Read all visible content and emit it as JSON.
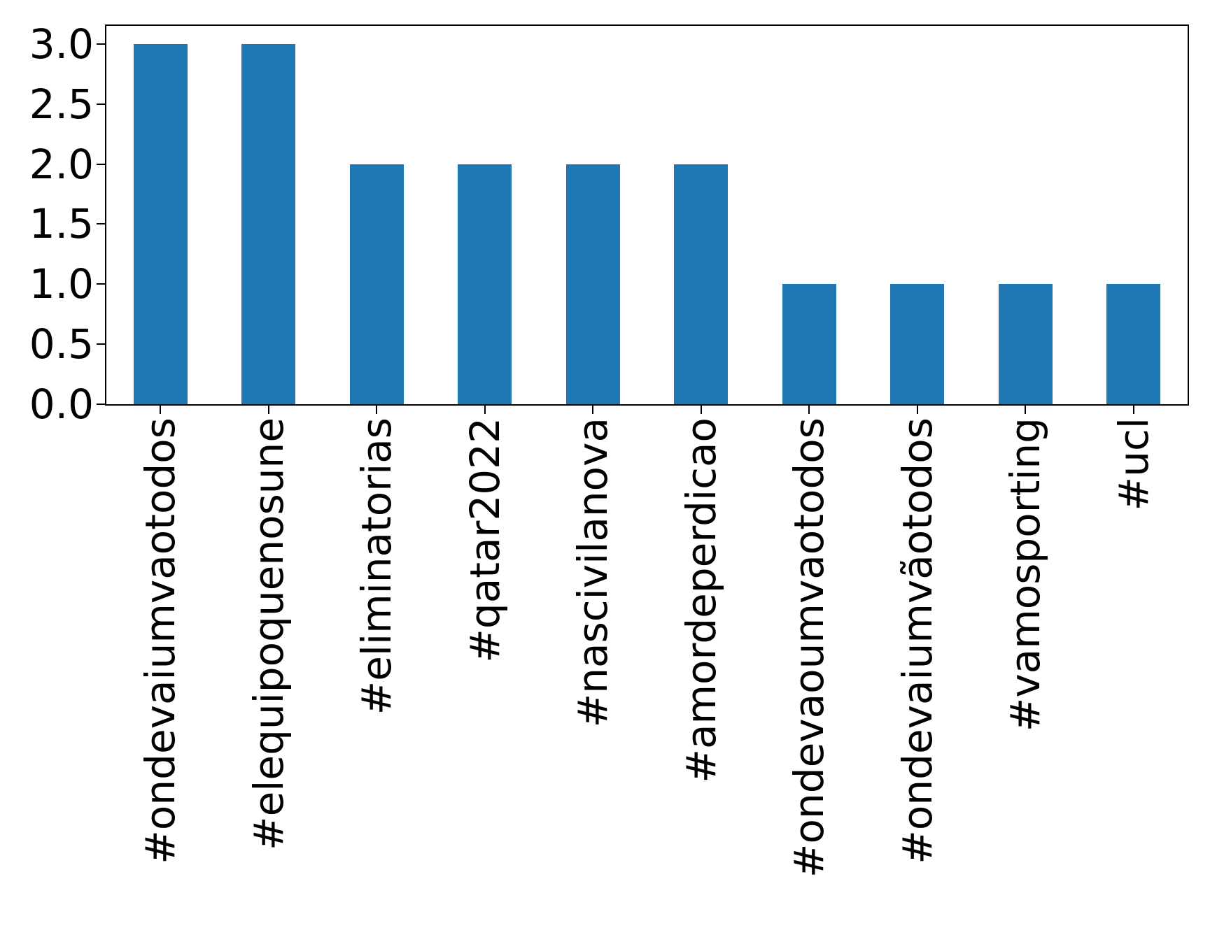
{
  "chart_data": {
    "type": "bar",
    "categories": [
      "#ondevaiumvaotodos",
      "#elequipoquenosune",
      "#eliminatorias",
      "#qatar2022",
      "#nascivilanova",
      "#amordeperdicao",
      "#ondevaoumvaotodos",
      "#ondevaiumvãotodos",
      "#vamosporting",
      "#ucl"
    ],
    "values": [
      3,
      3,
      2,
      2,
      2,
      2,
      1,
      1,
      1,
      1
    ],
    "yticks": [
      0.0,
      0.5,
      1.0,
      1.5,
      2.0,
      2.5,
      3.0
    ],
    "ytick_labels": [
      "0.0",
      "0.5",
      "1.0",
      "1.5",
      "2.0",
      "2.5",
      "3.0"
    ],
    "ylim": [
      0,
      3.15
    ],
    "bar_color": "#1f77b4",
    "x_tick_rotation": 90,
    "grid": false,
    "legend": null
  }
}
